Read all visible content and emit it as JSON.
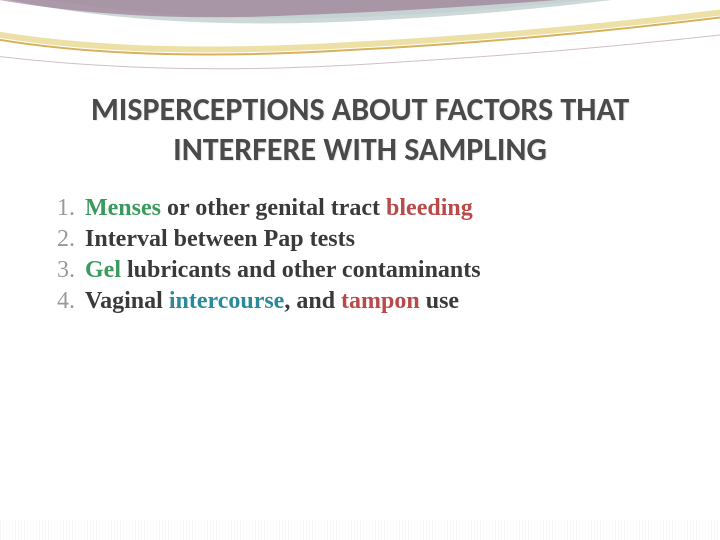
{
  "title": {
    "line1": "MISPERCEPTIONS ABOUT FACTORS THAT",
    "line2": "INTERFERE WITH SAMPLING",
    "color": "#4a4a4a",
    "fontsize": 32
  },
  "list": {
    "number_color": "#9a9a9a",
    "text_color": "#3a3a3a",
    "fontsize": 24,
    "items": [
      {
        "number": "1.",
        "segments": [
          {
            "text": "Menses",
            "color": "#3a9b5c"
          },
          {
            "text": " or other genital tract ",
            "color": "#3a3a3a"
          },
          {
            "text": "bleeding",
            "color": "#b84a4a"
          }
        ]
      },
      {
        "number": "2.",
        "segments": [
          {
            "text": "Interval between Pap tests",
            "color": "#3a3a3a"
          }
        ]
      },
      {
        "number": "3.",
        "segments": [
          {
            "text": "Gel",
            "color": "#3a9b5c"
          },
          {
            "text": " lubricants and other contaminants",
            "color": "#3a3a3a"
          }
        ]
      },
      {
        "number": "4.",
        "segments": [
          {
            "text": "Vaginal ",
            "color": "#3a3a3a"
          },
          {
            "text": "intercourse",
            "color": "#2a8a9a"
          },
          {
            "text": ", and ",
            "color": "#3a3a3a"
          },
          {
            "text": "tampon",
            "color": "#b84a4a"
          },
          {
            "text": " use",
            "color": "#3a3a3a"
          }
        ]
      }
    ]
  },
  "decor": {
    "swoosh_colors": [
      "#8a5a7a",
      "#d4a94a",
      "#e8d890",
      "#b8c8c8",
      "#d8d8d8"
    ],
    "background": "#ffffff"
  }
}
